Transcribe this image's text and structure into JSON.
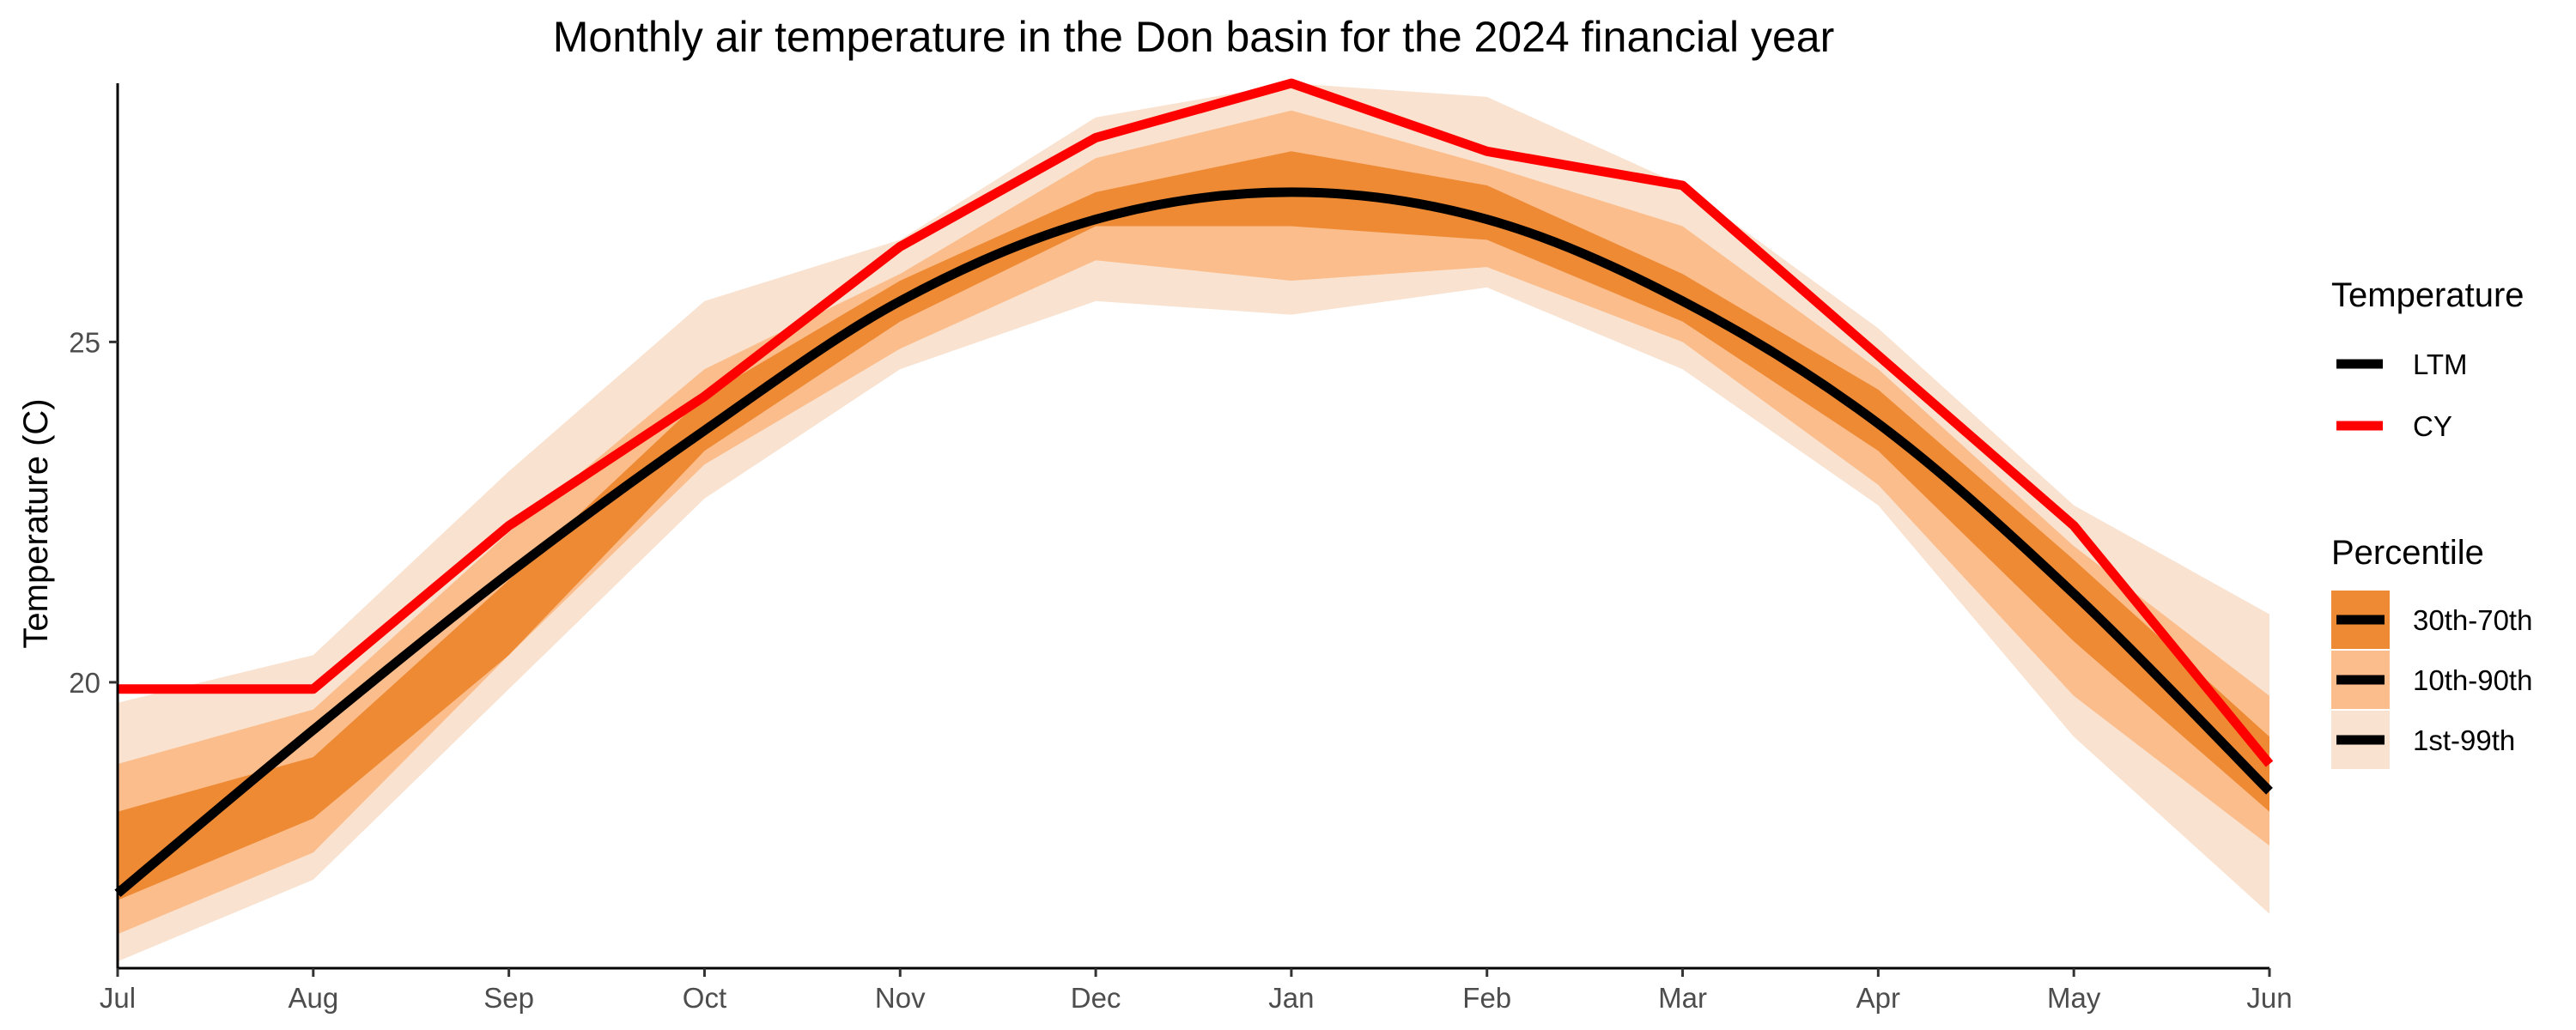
{
  "chart_data": {
    "type": "area",
    "title": "Monthly air temperature in the Don basin for the 2024 financial year",
    "xlabel": "",
    "ylabel": "Temperature (C)",
    "categories": [
      "Jul",
      "Aug",
      "Sep",
      "Oct",
      "Nov",
      "Dec",
      "Jan",
      "Feb",
      "Mar",
      "Apr",
      "May",
      "Jun"
    ],
    "ylim": [
      15.8,
      28.8
    ],
    "yticks": [
      20,
      25
    ],
    "grid": false,
    "lines": [
      {
        "name": "LTM",
        "color": "#000000",
        "values": [
          16.9,
          19.3,
          21.6,
          23.7,
          25.6,
          26.8,
          27.2,
          26.8,
          25.6,
          23.8,
          21.3,
          18.4
        ]
      },
      {
        "name": "CY",
        "color": "#ff0000",
        "values": [
          19.9,
          19.9,
          22.3,
          24.2,
          26.4,
          28.0,
          28.8,
          27.8,
          27.3,
          24.8,
          22.3,
          18.8
        ]
      }
    ],
    "bands": [
      {
        "name": "1st-99th",
        "color": "#f9e2cf",
        "lower": [
          15.9,
          17.1,
          19.9,
          22.7,
          24.6,
          25.6,
          25.4,
          25.8,
          24.6,
          22.6,
          19.2,
          16.6
        ],
        "upper": [
          19.7,
          20.4,
          23.1,
          25.6,
          26.5,
          28.3,
          28.8,
          28.6,
          27.3,
          25.2,
          22.6,
          21.0
        ]
      },
      {
        "name": "10th-90th",
        "color": "#fbbd8b",
        "lower": [
          16.3,
          17.5,
          20.4,
          23.2,
          24.9,
          26.2,
          25.9,
          26.1,
          25.0,
          22.9,
          19.8,
          17.6
        ],
        "upper": [
          18.8,
          19.6,
          22.2,
          24.6,
          26.0,
          27.7,
          28.4,
          27.6,
          26.7,
          24.6,
          22.0,
          19.8
        ]
      },
      {
        "name": "30th-70th",
        "color": "#ee8a34",
        "lower": [
          16.8,
          18.0,
          20.4,
          23.4,
          25.3,
          26.7,
          26.7,
          26.5,
          25.3,
          23.4,
          20.6,
          18.1
        ],
        "upper": [
          18.1,
          18.9,
          21.5,
          24.2,
          25.9,
          27.2,
          27.8,
          27.3,
          26.0,
          24.3,
          21.8,
          19.2
        ]
      }
    ],
    "legends": [
      {
        "title": "Temperature",
        "entries": [
          "LTM",
          "CY"
        ]
      },
      {
        "title": "Percentile",
        "entries": [
          "30th-70th",
          "10th-90th",
          "1st-99th"
        ]
      }
    ]
  }
}
